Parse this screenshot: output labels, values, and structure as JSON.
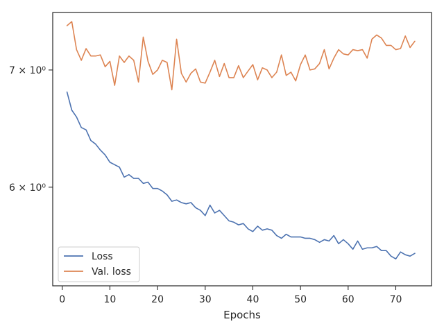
{
  "chart_data": {
    "type": "line",
    "title": "",
    "xlabel": "Epochs",
    "ylabel": "",
    "xlim": [
      -2,
      77.5
    ],
    "ylim_log": [
      5.27,
      7.55
    ],
    "y_scale": "log",
    "grid": false,
    "legend_position": "lower-left",
    "x_ticks": [
      0,
      10,
      20,
      30,
      40,
      50,
      60,
      70
    ],
    "x_tick_labels": [
      "0",
      "10",
      "20",
      "30",
      "40",
      "50",
      "60",
      "70"
    ],
    "y_ticks": [
      6,
      7
    ],
    "y_tick_labels": [
      "6 × 10⁰",
      "7 × 10⁰"
    ],
    "x": [
      1,
      2,
      3,
      4,
      5,
      6,
      7,
      8,
      9,
      10,
      11,
      12,
      13,
      14,
      15,
      16,
      17,
      18,
      19,
      20,
      21,
      22,
      23,
      24,
      25,
      26,
      27,
      28,
      29,
      30,
      31,
      32,
      33,
      34,
      35,
      36,
      37,
      38,
      39,
      40,
      41,
      42,
      43,
      44,
      45,
      46,
      47,
      48,
      49,
      50,
      51,
      52,
      53,
      54,
      55,
      56,
      57,
      58,
      59,
      60,
      61,
      62,
      63,
      64,
      65,
      66,
      67,
      68,
      69,
      70,
      71,
      72,
      73,
      74
    ],
    "series": [
      {
        "name": "Loss",
        "color": "#4c72b0",
        "values": [
          6.8,
          6.64,
          6.58,
          6.49,
          6.47,
          6.38,
          6.35,
          6.3,
          6.26,
          6.2,
          6.18,
          6.16,
          6.08,
          6.1,
          6.07,
          6.07,
          6.03,
          6.04,
          5.99,
          5.99,
          5.97,
          5.94,
          5.89,
          5.9,
          5.88,
          5.87,
          5.88,
          5.84,
          5.82,
          5.78,
          5.86,
          5.8,
          5.82,
          5.78,
          5.74,
          5.73,
          5.71,
          5.72,
          5.68,
          5.66,
          5.7,
          5.67,
          5.68,
          5.67,
          5.63,
          5.61,
          5.64,
          5.62,
          5.62,
          5.62,
          5.61,
          5.61,
          5.6,
          5.58,
          5.6,
          5.59,
          5.63,
          5.57,
          5.6,
          5.57,
          5.53,
          5.59,
          5.53,
          5.54,
          5.54,
          5.55,
          5.52,
          5.52,
          5.48,
          5.46,
          5.51,
          5.49,
          5.48,
          5.5
        ]
      },
      {
        "name": "Val. loss",
        "color": "#dd8452",
        "values": [
          7.42,
          7.46,
          7.19,
          7.09,
          7.2,
          7.13,
          7.13,
          7.14,
          7.03,
          7.08,
          6.86,
          7.13,
          7.07,
          7.13,
          7.09,
          6.89,
          7.31,
          7.08,
          6.96,
          7.0,
          7.09,
          7.07,
          6.82,
          7.29,
          6.97,
          6.89,
          6.97,
          7.01,
          6.89,
          6.88,
          6.98,
          7.09,
          6.94,
          7.06,
          6.93,
          6.93,
          7.04,
          6.93,
          6.99,
          7.05,
          6.91,
          7.02,
          7.0,
          6.93,
          6.98,
          7.14,
          6.95,
          6.98,
          6.9,
          7.05,
          7.14,
          7.0,
          7.01,
          7.06,
          7.19,
          7.01,
          7.11,
          7.19,
          7.15,
          7.14,
          7.19,
          7.18,
          7.19,
          7.11,
          7.29,
          7.33,
          7.3,
          7.23,
          7.23,
          7.19,
          7.2,
          7.32,
          7.21,
          7.27
        ]
      }
    ]
  }
}
